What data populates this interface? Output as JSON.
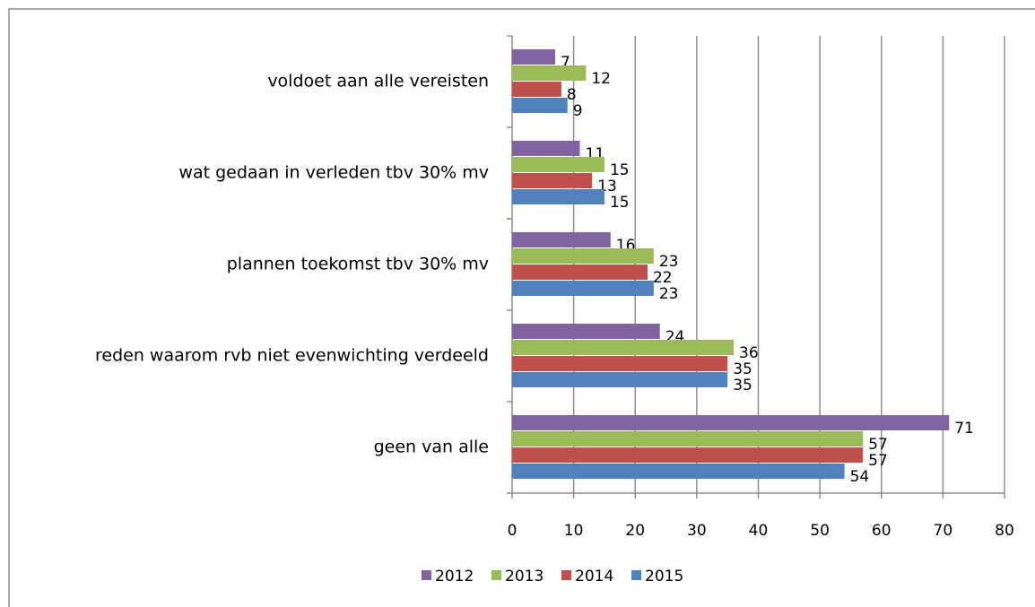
{
  "chart_data": {
    "type": "bar",
    "orientation": "horizontal",
    "categories": [
      "voldoet aan alle vereisten",
      "wat gedaan in verleden tbv 30% mv",
      "plannen toekomst tbv 30% mv",
      "reden waarom rvb niet evenwichting verdeeld",
      "geen van alle"
    ],
    "series": [
      {
        "name": "2012",
        "color": "#8064a2",
        "values": [
          7,
          11,
          16,
          24,
          71
        ]
      },
      {
        "name": "2013",
        "color": "#9bbb59",
        "values": [
          12,
          15,
          23,
          36,
          57
        ]
      },
      {
        "name": "2014",
        "color": "#c0504d",
        "values": [
          8,
          13,
          22,
          35,
          57
        ]
      },
      {
        "name": "2015",
        "color": "#4f81bd",
        "values": [
          9,
          15,
          23,
          35,
          54
        ]
      }
    ],
    "xlim": [
      0,
      80
    ],
    "xticks": [
      0,
      10,
      20,
      30,
      40,
      50,
      60,
      70,
      80
    ],
    "grid": true,
    "legend": "bottom"
  }
}
